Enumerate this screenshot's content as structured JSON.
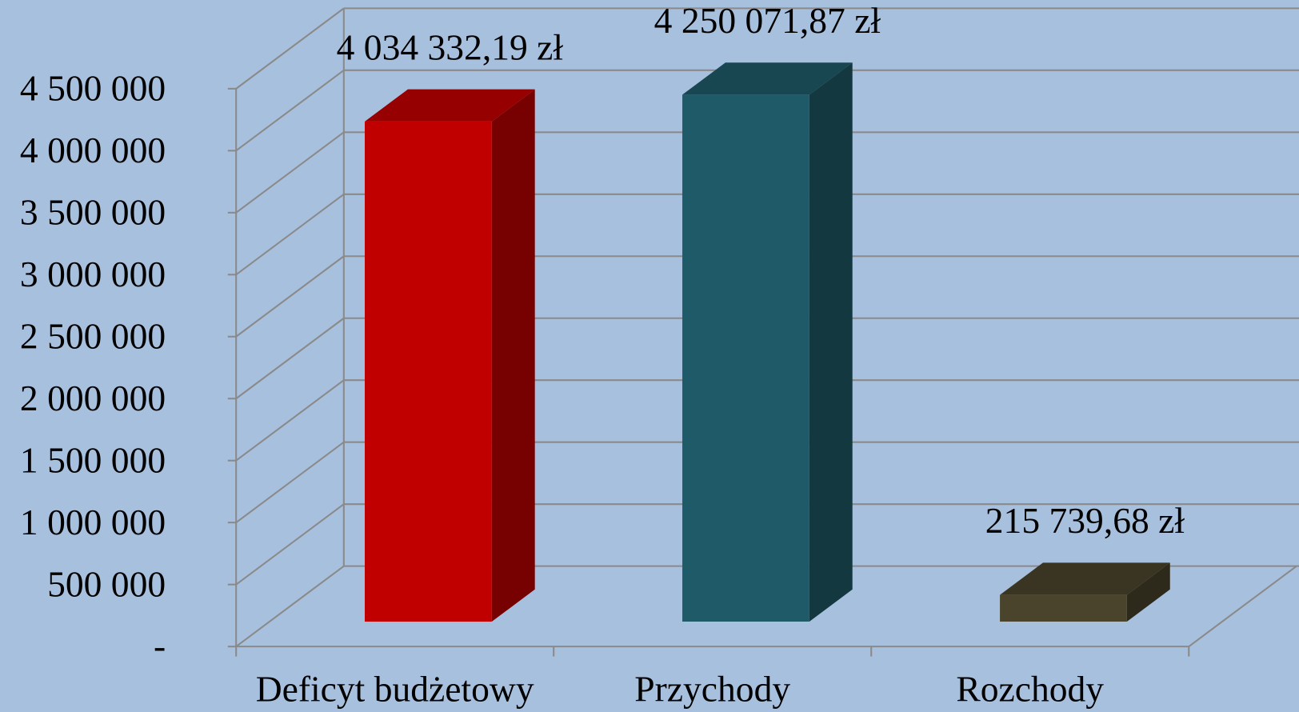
{
  "chart_data": {
    "type": "bar3d",
    "categories": [
      "Deficyt budżetowy",
      "Przychody",
      "Rozchody"
    ],
    "values": [
      4034332.19,
      4250071.87,
      215739.68
    ],
    "value_labels": [
      "4 034 332,19 zł",
      "4 250 071,87 zł",
      "215 739,68 zł"
    ],
    "colors": [
      "#c00000",
      "#1f5a68",
      "#4a442c"
    ],
    "ylim": [
      0,
      4500000
    ],
    "yticks": [
      {
        "value": 0,
        "label": "-"
      },
      {
        "value": 500000,
        "label": "500 000"
      },
      {
        "value": 1000000,
        "label": "1 000 000"
      },
      {
        "value": 1500000,
        "label": "1 500 000"
      },
      {
        "value": 2000000,
        "label": "2 000 000"
      },
      {
        "value": 2500000,
        "label": "2 500 000"
      },
      {
        "value": 3000000,
        "label": "3 000 000"
      },
      {
        "value": 3500000,
        "label": "3 500 000"
      },
      {
        "value": 4000000,
        "label": "4 000 000"
      },
      {
        "value": 4500000,
        "label": "4 500 000"
      }
    ],
    "grid": true
  }
}
